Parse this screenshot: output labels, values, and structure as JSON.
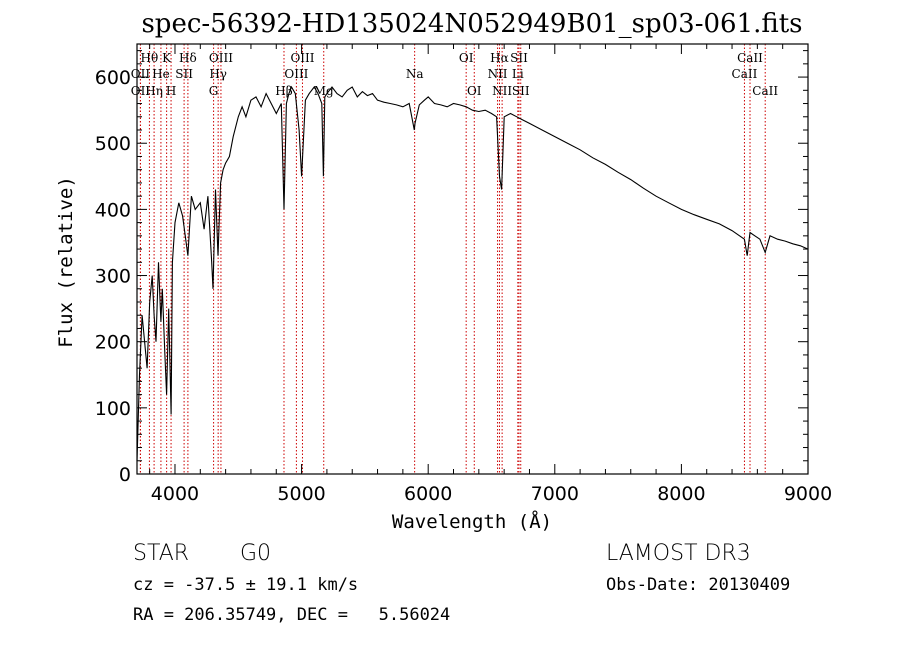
{
  "colors": {
    "background": "#ffffff",
    "axis": "#000000",
    "spectrum": "#000000",
    "line_marker": "#cc0000"
  },
  "chart_data": {
    "type": "line",
    "title": "spec-56392-HD135024N052949B01_sp03-061.fits",
    "xlabel": "Wavelength (Å)",
    "ylabel": "Flux (relative)",
    "xlim": [
      3700,
      9000
    ],
    "ylim": [
      0,
      650
    ],
    "x_ticks": [
      4000,
      5000,
      6000,
      7000,
      8000,
      9000
    ],
    "y_ticks": [
      0,
      100,
      200,
      300,
      400,
      500,
      600
    ],
    "grid": false,
    "series": [
      {
        "name": "flux",
        "x": [
          3700,
          3720,
          3740,
          3760,
          3780,
          3800,
          3820,
          3835,
          3850,
          3870,
          3889,
          3900,
          3920,
          3934,
          3950,
          3969,
          3980,
          4000,
          4030,
          4060,
          4102,
          4130,
          4160,
          4200,
          4230,
          4260,
          4290,
          4300,
          4320,
          4340,
          4360,
          4380,
          4400,
          4430,
          4460,
          4500,
          4530,
          4560,
          4600,
          4640,
          4680,
          4720,
          4760,
          4800,
          4840,
          4861,
          4880,
          4900,
          4920,
          4950,
          4980,
          5000,
          5030,
          5060,
          5100,
          5130,
          5160,
          5172,
          5183,
          5200,
          5240,
          5280,
          5320,
          5360,
          5400,
          5440,
          5480,
          5520,
          5560,
          5600,
          5650,
          5700,
          5750,
          5800,
          5850,
          5890,
          5896,
          5930,
          5970,
          6000,
          6050,
          6100,
          6150,
          6200,
          6250,
          6300,
          6350,
          6400,
          6450,
          6500,
          6540,
          6563,
          6580,
          6600,
          6650,
          6700,
          6750,
          6800,
          6900,
          7000,
          7100,
          7200,
          7300,
          7400,
          7500,
          7600,
          7700,
          7800,
          7900,
          8000,
          8100,
          8200,
          8300,
          8400,
          8498,
          8520,
          8542,
          8580,
          8620,
          8662,
          8700,
          8760,
          8820,
          8880,
          8940,
          9000
        ],
        "values": [
          20,
          150,
          240,
          200,
          160,
          260,
          300,
          240,
          200,
          320,
          230,
          280,
          180,
          120,
          250,
          90,
          320,
          380,
          410,
          390,
          330,
          420,
          400,
          410,
          370,
          420,
          320,
          280,
          430,
          330,
          440,
          460,
          470,
          480,
          510,
          540,
          555,
          540,
          565,
          570,
          555,
          575,
          560,
          545,
          560,
          400,
          560,
          575,
          585,
          575,
          520,
          450,
          565,
          575,
          585,
          575,
          560,
          450,
          570,
          575,
          585,
          575,
          570,
          580,
          585,
          570,
          578,
          572,
          575,
          565,
          562,
          560,
          558,
          555,
          560,
          520,
          530,
          558,
          565,
          570,
          560,
          558,
          555,
          560,
          558,
          555,
          550,
          548,
          550,
          545,
          540,
          450,
          430,
          540,
          545,
          540,
          535,
          530,
          520,
          510,
          500,
          490,
          478,
          468,
          456,
          445,
          432,
          420,
          410,
          400,
          392,
          385,
          378,
          368,
          355,
          330,
          365,
          360,
          355,
          335,
          360,
          355,
          352,
          348,
          345,
          340
        ]
      }
    ],
    "line_markers": [
      {
        "label": "Hθ",
        "wavelength": 3798,
        "row": 1
      },
      {
        "label": "OII",
        "wavelength": 3727,
        "row": 2
      },
      {
        "label": "OII",
        "wavelength": 3727,
        "row": 3
      },
      {
        "label": "Hη",
        "wavelength": 3835,
        "row": 3
      },
      {
        "label": "He",
        "wavelength": 3889,
        "row": 2
      },
      {
        "label": "K",
        "wavelength": 3934,
        "row": 1
      },
      {
        "label": "H",
        "wavelength": 3969,
        "row": 3
      },
      {
        "label": "SII",
        "wavelength": 4072,
        "row": 2
      },
      {
        "label": "Hδ",
        "wavelength": 4102,
        "row": 1
      },
      {
        "label": "OIII",
        "wavelength": 4363,
        "row": 1
      },
      {
        "label": "Hγ",
        "wavelength": 4341,
        "row": 2
      },
      {
        "label": "G",
        "wavelength": 4305,
        "row": 3
      },
      {
        "label": "Hβ",
        "wavelength": 4861,
        "row": 3
      },
      {
        "label": "OIII",
        "wavelength": 4959,
        "row": 2
      },
      {
        "label": "OIII",
        "wavelength": 5007,
        "row": 1
      },
      {
        "label": "Mg",
        "wavelength": 5175,
        "row": 3
      },
      {
        "label": "Na",
        "wavelength": 5893,
        "row": 2
      },
      {
        "label": "OI",
        "wavelength": 6300,
        "row": 1
      },
      {
        "label": "OI",
        "wavelength": 6364,
        "row": 3
      },
      {
        "label": "Hα",
        "wavelength": 6563,
        "row": 1
      },
      {
        "label": "NII",
        "wavelength": 6548,
        "row": 2
      },
      {
        "label": "NII",
        "wavelength": 6584,
        "row": 3
      },
      {
        "label": "SII",
        "wavelength": 6717,
        "row": 1
      },
      {
        "label": "Li",
        "wavelength": 6708,
        "row": 2
      },
      {
        "label": "SII",
        "wavelength": 6731,
        "row": 3
      },
      {
        "label": "CaII",
        "wavelength": 8542,
        "row": 1
      },
      {
        "label": "CaII",
        "wavelength": 8498,
        "row": 2
      },
      {
        "label": "CaII",
        "wavelength": 8662,
        "row": 3
      }
    ]
  },
  "info": {
    "object_class": "STAR",
    "subclass": "G0",
    "survey": "LAMOST DR3",
    "redshift": "cz = -37.5 ± 19.1 km/s",
    "obs_date": "Obs-Date: 20130409",
    "coordinates": "RA = 206.35749, DEC =   5.56024"
  }
}
